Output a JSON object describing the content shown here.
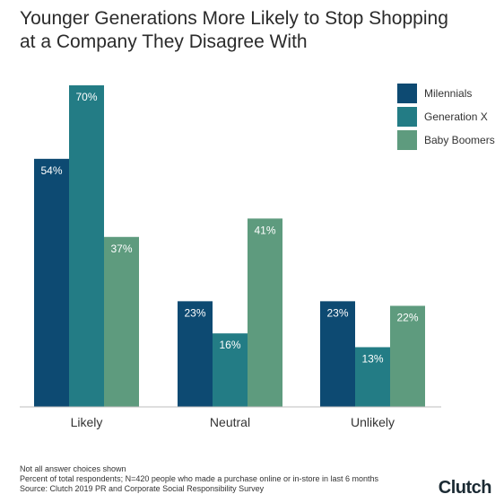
{
  "title_line1": "Younger Generations More Likely to Stop Shopping",
  "title_line2": "at a Company They Disagree With",
  "chart_data": {
    "type": "bar",
    "title": "Younger Generations More Likely to Stop Shopping at a Company They Disagree With",
    "categories": [
      "Likely",
      "Neutral",
      "Unlikely"
    ],
    "series": [
      {
        "name": "Milennials",
        "values": [
          54,
          23,
          23
        ],
        "color": "#0d4a72"
      },
      {
        "name": "Generation X",
        "values": [
          70,
          16,
          13
        ],
        "color": "#237c85"
      },
      {
        "name": "Baby Boomers",
        "values": [
          37,
          41,
          22
        ],
        "color": "#5e9b7e"
      }
    ],
    "value_suffix": "%",
    "ylim": [
      0,
      80
    ],
    "grid": false,
    "legend_position": "top-right"
  },
  "footnotes": [
    "Not all answer choices shown",
    "Percent of total respondents; N=420 people who made a purchase online or in-store in last 6 months",
    "Source: Clutch 2019 PR and Corporate Social Responsibility Survey"
  ],
  "brand": {
    "name": "Clutch",
    "text": "Clutch",
    "accent": "#e8573d"
  }
}
